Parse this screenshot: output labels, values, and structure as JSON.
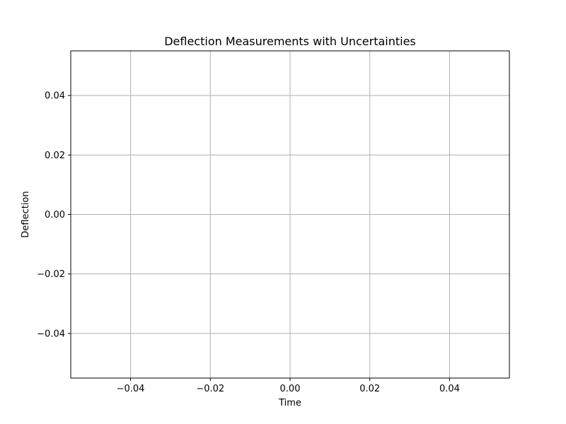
{
  "chart_data": {
    "type": "scatter",
    "title": "Deflection Measurements with Uncertainties",
    "xlabel": "Time",
    "ylabel": "Deflection",
    "xlim": [
      -0.055,
      0.055
    ],
    "ylim": [
      -0.055,
      0.055
    ],
    "x_ticks": [
      -0.04,
      -0.02,
      0.0,
      0.02,
      0.04
    ],
    "y_ticks": [
      -0.04,
      -0.02,
      0.0,
      0.02,
      0.04
    ],
    "x_tick_labels": [
      "−0.04",
      "−0.02",
      "0.00",
      "0.02",
      "0.04"
    ],
    "y_tick_labels": [
      "−0.04",
      "−0.02",
      "0.00",
      "0.02",
      "0.04"
    ],
    "grid": true,
    "series": [
      {
        "x": [],
        "y": [],
        "yerr": []
      }
    ]
  }
}
